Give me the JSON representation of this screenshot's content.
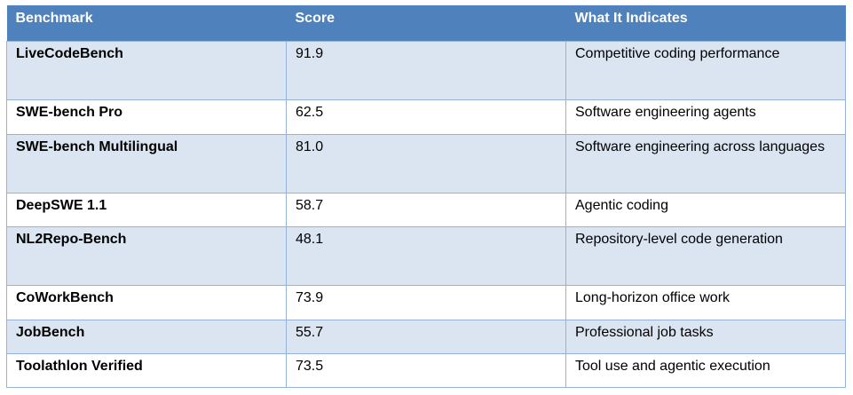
{
  "table": {
    "headers": [
      "Benchmark",
      "Score",
      "What It Indicates"
    ],
    "rows": [
      {
        "benchmark": "LiveCodeBench",
        "score": "91.9",
        "indicates": "Competitive coding performance"
      },
      {
        "benchmark": "SWE-bench Pro",
        "score": "62.5",
        "indicates": "Software engineering agents"
      },
      {
        "benchmark": "SWE-bench Multilingual",
        "score": "81.0",
        "indicates": "Software engineering across languages"
      },
      {
        "benchmark": "DeepSWE 1.1",
        "score": "58.7",
        "indicates": "Agentic coding"
      },
      {
        "benchmark": "NL2Repo-Bench",
        "score": "48.1",
        "indicates": "Repository-level code generation"
      },
      {
        "benchmark": "CoWorkBench",
        "score": "73.9",
        "indicates": "Long-horizon office work"
      },
      {
        "benchmark": "JobBench",
        "score": "55.7",
        "indicates": "Professional job tasks"
      },
      {
        "benchmark": "Toolathlon Verified",
        "score": "73.5",
        "indicates": "Tool use and agentic execution"
      }
    ]
  },
  "colors": {
    "header_bg": "#4f81bd",
    "band_bg": "#dbe5f1",
    "border": "#95b3d7"
  }
}
